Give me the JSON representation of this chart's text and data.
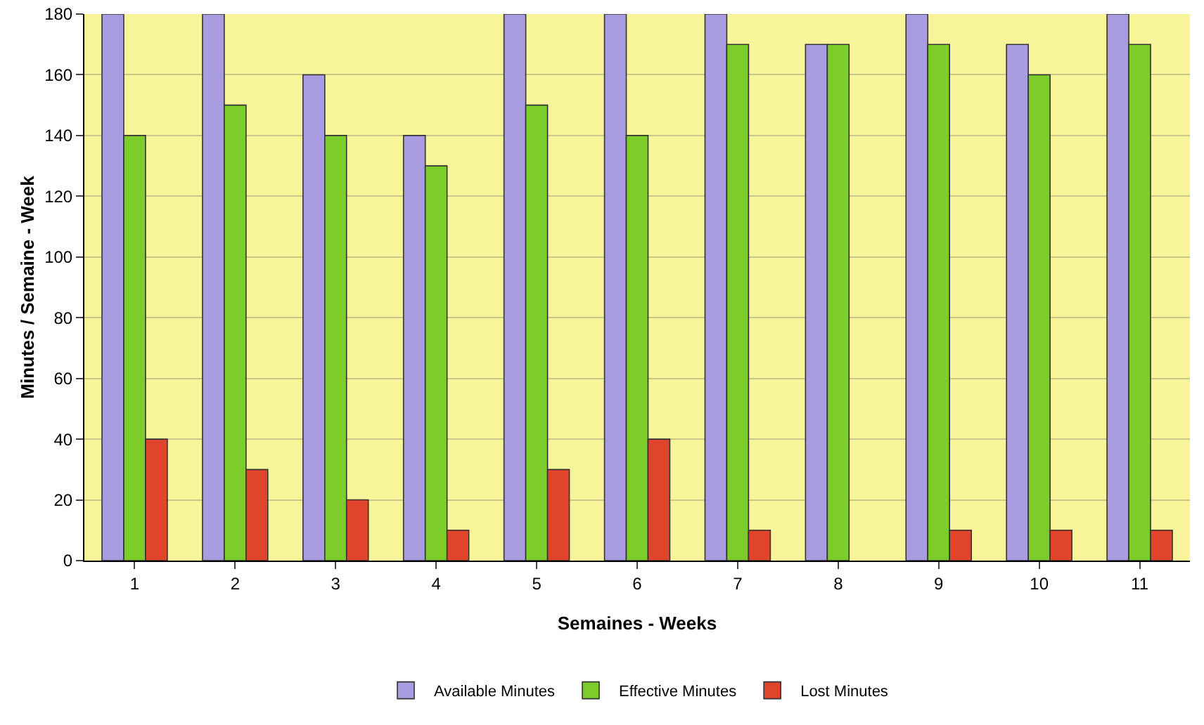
{
  "chart_data": {
    "type": "bar",
    "xlabel": "Semaines - Weeks",
    "ylabel": "Minutes / Semaine - Week",
    "categories": [
      "1",
      "2",
      "3",
      "4",
      "5",
      "6",
      "7",
      "8",
      "9",
      "10",
      "11"
    ],
    "series": [
      {
        "name": "Available Minutes",
        "color": "#a99be0",
        "values": [
          180,
          180,
          160,
          140,
          180,
          180,
          180,
          170,
          180,
          170,
          180
        ]
      },
      {
        "name": "Effective Minutes",
        "color": "#7ccd2a",
        "values": [
          140,
          150,
          140,
          130,
          150,
          140,
          170,
          170,
          170,
          160,
          170
        ]
      },
      {
        "name": "Lost Minutes",
        "color": "#e0442a",
        "values": [
          40,
          30,
          20,
          10,
          30,
          40,
          10,
          0,
          10,
          10,
          10
        ]
      }
    ],
    "ylim": [
      0,
      180
    ],
    "yticks": [
      0,
      20,
      40,
      60,
      80,
      100,
      120,
      140,
      160,
      180
    ],
    "grid": "y",
    "legend": "bottom"
  }
}
